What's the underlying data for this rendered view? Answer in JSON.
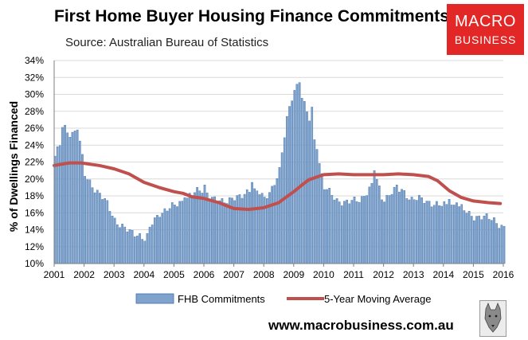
{
  "header": {
    "title": "First Home Buyer Housing Finance Commitments",
    "subtitle": "Source: Australian Bureau of Statistics"
  },
  "logo": {
    "line1": "MACRO",
    "line2": "BUSINESS"
  },
  "footer": {
    "url": "www.macrobusiness.com.au"
  },
  "colors": {
    "bar": "#7fa3cc",
    "bar_edge": "#3f6fa8",
    "line": "#c0504d",
    "logo": "#e32626"
  },
  "icons": {
    "footer_image": "wolf-icon"
  },
  "chart_data": {
    "type": "bar",
    "title": "First Home Buyer Housing Finance Commitments",
    "ylabel": "% of Dwellings Financed",
    "xlabel": "",
    "ylim": [
      10,
      34
    ],
    "yticks": [
      10,
      12,
      14,
      16,
      18,
      20,
      22,
      24,
      26,
      28,
      30,
      32,
      34
    ],
    "ytick_labels": [
      "10%",
      "12%",
      "14%",
      "16%",
      "18%",
      "20%",
      "22%",
      "24%",
      "26%",
      "28%",
      "30%",
      "32%",
      "34%"
    ],
    "xlim": [
      2001,
      2016
    ],
    "xticks": [
      2001,
      2002,
      2003,
      2004,
      2005,
      2006,
      2007,
      2008,
      2009,
      2010,
      2011,
      2012,
      2013,
      2014,
      2015,
      2016
    ],
    "grid": true,
    "legend_position": "bottom",
    "series": [
      {
        "name": "FHB Commitments",
        "type": "bar",
        "anchors": [
          [
            2001.0,
            22.7
          ],
          [
            2001.1,
            23.5
          ],
          [
            2001.2,
            24.2
          ],
          [
            2001.3,
            26.1
          ],
          [
            2001.45,
            25.4
          ],
          [
            2001.6,
            25.5
          ],
          [
            2001.75,
            25.8
          ],
          [
            2001.85,
            24.0
          ],
          [
            2002.0,
            20.4
          ],
          [
            2002.3,
            19.0
          ],
          [
            2002.5,
            18.2
          ],
          [
            2002.75,
            17.0
          ],
          [
            2003.0,
            15.2
          ],
          [
            2003.3,
            14.2
          ],
          [
            2003.5,
            13.7
          ],
          [
            2003.85,
            13.4
          ],
          [
            2004.05,
            12.7
          ],
          [
            2004.2,
            14.5
          ],
          [
            2004.5,
            16.0
          ],
          [
            2004.8,
            16.5
          ],
          [
            2005.0,
            16.8
          ],
          [
            2005.5,
            18.0
          ],
          [
            2005.8,
            18.6
          ],
          [
            2006.0,
            18.8
          ],
          [
            2006.3,
            17.5
          ],
          [
            2006.6,
            17.3
          ],
          [
            2006.9,
            17.8
          ],
          [
            2007.2,
            17.7
          ],
          [
            2007.5,
            18.8
          ],
          [
            2007.8,
            18.5
          ],
          [
            2008.0,
            17.5
          ],
          [
            2008.25,
            19.0
          ],
          [
            2008.5,
            21.0
          ],
          [
            2008.75,
            27.0
          ],
          [
            2008.9,
            29.5
          ],
          [
            2009.0,
            30.6
          ],
          [
            2009.12,
            31.3
          ],
          [
            2009.3,
            29.0
          ],
          [
            2009.55,
            26.5
          ],
          [
            2009.8,
            22.5
          ],
          [
            2010.0,
            19.0
          ],
          [
            2010.4,
            17.5
          ],
          [
            2010.8,
            17.2
          ],
          [
            2011.2,
            17.6
          ],
          [
            2011.6,
            19.2
          ],
          [
            2011.75,
            19.8
          ],
          [
            2011.95,
            17.5
          ],
          [
            2012.3,
            18.6
          ],
          [
            2012.6,
            18.7
          ],
          [
            2012.9,
            17.6
          ],
          [
            2013.2,
            17.6
          ],
          [
            2013.5,
            17.3
          ],
          [
            2013.85,
            16.8
          ],
          [
            2014.2,
            17.0
          ],
          [
            2014.5,
            16.7
          ],
          [
            2014.8,
            15.9
          ],
          [
            2015.0,
            15.6
          ],
          [
            2015.4,
            15.4
          ],
          [
            2015.7,
            15.2
          ],
          [
            2015.9,
            14.4
          ],
          [
            2016.0,
            14.2
          ]
        ],
        "spikes": [
          [
            2001.25,
            26.1
          ],
          [
            2001.75,
            25.8
          ],
          [
            2005.35,
            17.8
          ],
          [
            2006.0,
            19.3
          ],
          [
            2007.55,
            19.6
          ],
          [
            2008.6,
            19.8
          ],
          [
            2009.15,
            31.4
          ],
          [
            2009.55,
            28.5
          ],
          [
            2009.75,
            23.5
          ],
          [
            2011.7,
            21.0
          ],
          [
            2012.45,
            19.3
          ],
          [
            2014.15,
            17.6
          ],
          [
            2014.4,
            17.2
          ]
        ]
      },
      {
        "name": "5-Year Moving Average",
        "type": "line",
        "points": [
          [
            2001.0,
            21.6
          ],
          [
            2001.5,
            21.9
          ],
          [
            2001.9,
            21.9
          ],
          [
            2002.5,
            21.6
          ],
          [
            2003.0,
            21.2
          ],
          [
            2003.5,
            20.6
          ],
          [
            2004.0,
            19.6
          ],
          [
            2004.5,
            19.0
          ],
          [
            2005.0,
            18.5
          ],
          [
            2005.3,
            18.3
          ],
          [
            2005.6,
            17.9
          ],
          [
            2006.0,
            17.7
          ],
          [
            2006.5,
            17.2
          ],
          [
            2007.0,
            16.5
          ],
          [
            2007.5,
            16.4
          ],
          [
            2008.0,
            16.6
          ],
          [
            2008.5,
            17.2
          ],
          [
            2009.0,
            18.5
          ],
          [
            2009.5,
            19.9
          ],
          [
            2010.0,
            20.5
          ],
          [
            2010.5,
            20.6
          ],
          [
            2011.0,
            20.5
          ],
          [
            2011.5,
            20.5
          ],
          [
            2012.0,
            20.5
          ],
          [
            2012.5,
            20.6
          ],
          [
            2013.0,
            20.5
          ],
          [
            2013.5,
            20.3
          ],
          [
            2013.8,
            19.8
          ],
          [
            2014.2,
            18.6
          ],
          [
            2014.6,
            17.8
          ],
          [
            2015.0,
            17.4
          ],
          [
            2015.5,
            17.2
          ],
          [
            2015.9,
            17.1
          ]
        ]
      }
    ]
  }
}
